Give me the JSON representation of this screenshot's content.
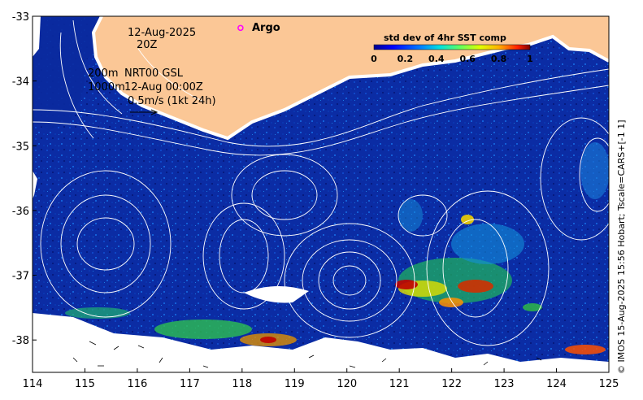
{
  "map": {
    "date": "12-Aug-2025",
    "time": "20Z",
    "depth_line_1": "200m",
    "depth_line_2": "1000m",
    "source_line": "NRT00 GSL",
    "analysis_time": "12-Aug 00:00Z",
    "vector_scale": "0.5m/s (1kt 24h)",
    "argo_label": "Argo",
    "credit": "© IMOS 15-Aug-2025 15:56 Hobart; Tscale=CARS+[-1 1]"
  },
  "colorbar": {
    "title": "std dev of 4hr SST comp",
    "ticks": [
      "0",
      "0.2",
      "0.4",
      "0.6",
      "0.8",
      "1"
    ],
    "range": [
      0,
      1
    ]
  },
  "axes": {
    "lon_range": [
      114,
      125
    ],
    "lat_range": [
      -38.5,
      -33
    ],
    "lon_ticks": [
      "114",
      "115",
      "116",
      "117",
      "118",
      "119",
      "120",
      "121",
      "122",
      "123",
      "124",
      "125"
    ],
    "lat_ticks": [
      "-33",
      "-34",
      "-35",
      "-36",
      "-37",
      "-38"
    ]
  },
  "argo": {
    "lon": 117.97,
    "lat": -33.18
  },
  "colors": {
    "land": "#FBC796",
    "ocean": "#0A2A9E",
    "ocean_deep": "#071C7A",
    "contour": "#FFFFFF",
    "argo_marker": "#FF00FF"
  }
}
